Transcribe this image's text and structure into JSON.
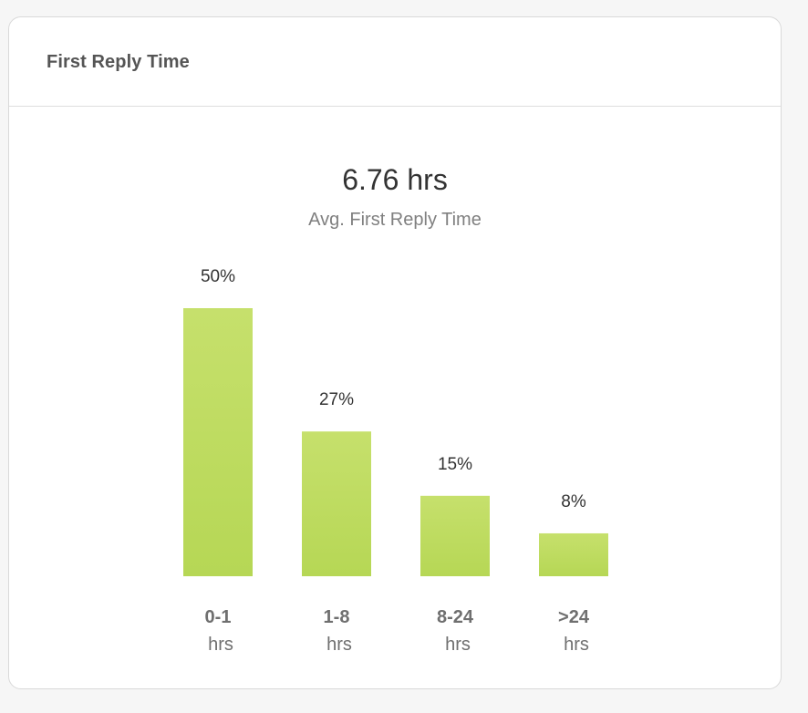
{
  "card": {
    "title": "First Reply Time"
  },
  "summary": {
    "value": "6.76 hrs",
    "label": "Avg. First Reply Time"
  },
  "colors": {
    "bar_top": "#c6e06c",
    "bar_bottom": "#b6d755",
    "card_border": "#d9d9d9"
  },
  "chart_data": {
    "type": "bar",
    "categories": [
      "0-1",
      "1-8",
      "8-24",
      ">24"
    ],
    "category_units": [
      "hrs",
      "hrs",
      "hrs",
      "hrs"
    ],
    "values": [
      50,
      27,
      15,
      8
    ],
    "value_labels": [
      "50%",
      "27%",
      "15%",
      "8%"
    ],
    "ylim": [
      0,
      50
    ],
    "grid": false,
    "legend": "none"
  }
}
